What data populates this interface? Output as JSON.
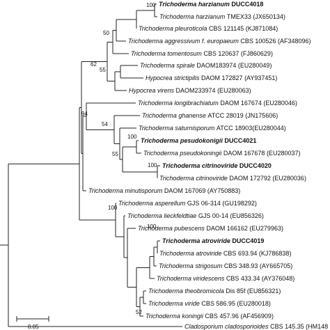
{
  "tree": {
    "leaves": [
      {
        "id": "harz_ducc",
        "genus": "Trichoderma harzianum",
        "rest": " DUCC4018",
        "bold": true
      },
      {
        "id": "harz_tmex",
        "genus": "Trichoderma harzianum",
        "rest": " TMEX33 (JX650134)",
        "bold": false
      },
      {
        "id": "pleuro",
        "genus": "Trichoderma pleuroticola",
        "rest": " CBS 121145 (KJ871084)",
        "bold": false
      },
      {
        "id": "aggress",
        "genus": "Trichoderma aggressivum f. europaeum",
        "rest": " CBS 100526 (AF348096)",
        "bold": false
      },
      {
        "id": "tomento",
        "genus": "Trichoderma tomentosum",
        "rest": " CBS 120637 (FJ860629)",
        "bold": false
      },
      {
        "id": "spirale",
        "genus": "Trichoderma spirale",
        "rest": " DAOM183974 (EU280049)",
        "bold": false
      },
      {
        "id": "strictip",
        "genus": "Hypocrea strictipilis",
        "rest": " DAOM 172827 (AY937451)",
        "bold": false
      },
      {
        "id": "virens",
        "genus": "Hypocrea virens",
        "rest": " DAOM233974 (EU280063)",
        "bold": false
      },
      {
        "id": "longib",
        "genus": "Trichoderma longibrachiatum",
        "rest": " DAOM 167674 (EU280046)",
        "bold": false
      },
      {
        "id": "ghan",
        "genus": "Trichoderma ghanense",
        "rest": " ATCC 28019 (JN175606)",
        "bold": false
      },
      {
        "id": "saturn",
        "genus": "Trichoderma saturnisporum",
        "rest": " ATCC 18903(EU280044)",
        "bold": false
      },
      {
        "id": "pseudo_ducc",
        "genus": "Trichoderma pesudokonigii",
        "rest": " DUCC4021",
        "bold": true
      },
      {
        "id": "pseudo_daom",
        "genus": "Trichoderma pseudokoningii",
        "rest": " DAOM 167678 (EU280037)",
        "bold": false
      },
      {
        "id": "citr_ducc",
        "genus": "Trichoderma citrinoviride",
        "rest": " DUCC4020",
        "bold": true
      },
      {
        "id": "citr_daom",
        "genus": "Trichoderma citrinoviride",
        "rest": " DAOM 172792 (EU280036)",
        "bold": false
      },
      {
        "id": "minut",
        "genus": "Trichoderma minutisporum",
        "rest": " DAOM 167069 (AY750883)",
        "bold": false
      },
      {
        "id": "asper",
        "genus": "Trichoderma asperellum",
        "rest": " GJS 06-314 (GU198292)",
        "bold": false
      },
      {
        "id": "lieck",
        "genus": "Trichoderma lieckfeldtiae",
        "rest": " GJS 00-14 (EU856326)",
        "bold": false
      },
      {
        "id": "pubesc",
        "genus": "Trichoderma pubescens",
        "rest": " DAOM 166162 (EU279963)",
        "bold": false
      },
      {
        "id": "atro_ducc",
        "genus": "Trichoderma atroviride",
        "rest": " DUCC4019",
        "bold": true
      },
      {
        "id": "atro_cbs",
        "genus": "Trichoderma atroviride",
        "rest": " CBS 693.94 (KJ786838)",
        "bold": false
      },
      {
        "id": "strig",
        "genus": "Trichoderma strigosum",
        "rest": " CBS 348.93 (AY665705)",
        "bold": false
      },
      {
        "id": "virid_sc",
        "genus": "Trichoderma viridescens",
        "rest": " CBS 433.34 (AY376048)",
        "bold": false
      },
      {
        "id": "theob",
        "genus": "Trichoderma theobromicola",
        "rest": " Dis 85f (EU856321)",
        "bold": false
      },
      {
        "id": "viride",
        "genus": "Trichoderma viride",
        "rest": " CBS 586.95 (EU280018)",
        "bold": false
      },
      {
        "id": "koning",
        "genus": "Trichoderma koningii",
        "rest": " CBS 457.96 (AF456909)",
        "bold": false
      },
      {
        "id": "clado",
        "genus": "Cladosporium cladosporioides",
        "rest": " CBS 145.35 (HM148",
        "bold": false
      }
    ],
    "support_values": [
      {
        "id": "bs_harz",
        "value": "100"
      },
      {
        "id": "bs_50",
        "value": "50"
      },
      {
        "id": "bs_62",
        "value": "62"
      },
      {
        "id": "bs_55a",
        "value": "55"
      },
      {
        "id": "bs_94",
        "value": "94"
      },
      {
        "id": "bs_54",
        "value": "54"
      },
      {
        "id": "bs_pseudo",
        "value": "100"
      },
      {
        "id": "bs_55b",
        "value": "55"
      },
      {
        "id": "bs_citr",
        "value": "100"
      },
      {
        "id": "bs_100v",
        "value": "100"
      },
      {
        "id": "bs_atro",
        "value": "100"
      },
      {
        "id": "bs_52",
        "value": "52"
      }
    ],
    "scale_bar": {
      "label": "0.05"
    }
  }
}
